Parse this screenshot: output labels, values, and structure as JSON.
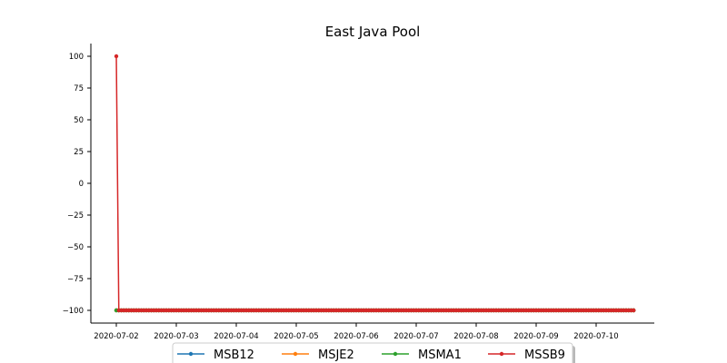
{
  "chart_data": {
    "type": "line",
    "title": "East Java Pool",
    "xlabel": "",
    "ylabel": "",
    "x_start": "2020-07-02",
    "x_tick_labels": [
      "2020-07-02",
      "2020-07-03",
      "2020-07-04",
      "2020-07-05",
      "2020-07-06",
      "2020-07-07",
      "2020-07-08",
      "2020-07-09",
      "2020-07-10"
    ],
    "xlim": [
      "2020-07-01T20:00",
      "2020-07-10T22:00"
    ],
    "y_ticks": [
      100,
      75,
      50,
      25,
      0,
      -25,
      -50,
      -75,
      -100
    ],
    "y_tick_labels": [
      "100",
      "75",
      "50",
      "25",
      "0",
      "−25",
      "−50",
      "−75",
      "−100"
    ],
    "ylim": [
      -110,
      110
    ],
    "grid": false,
    "legend": {
      "placement": "bottom-center",
      "columns": 4,
      "shadow": true
    },
    "point_interval_hours": 1,
    "point_count": 208,
    "series": [
      {
        "name": "MSB12",
        "color": "#1f77b4",
        "values_summary": "-100 for all points"
      },
      {
        "name": "MSJE2",
        "color": "#ff7f0e",
        "values_summary": "-100 for all points"
      },
      {
        "name": "MSMA1",
        "color": "#2ca02c",
        "values_summary": "-100 for all points"
      },
      {
        "name": "MSSB9",
        "color": "#d62728",
        "values_summary": "100 at first point, then -100"
      }
    ]
  }
}
